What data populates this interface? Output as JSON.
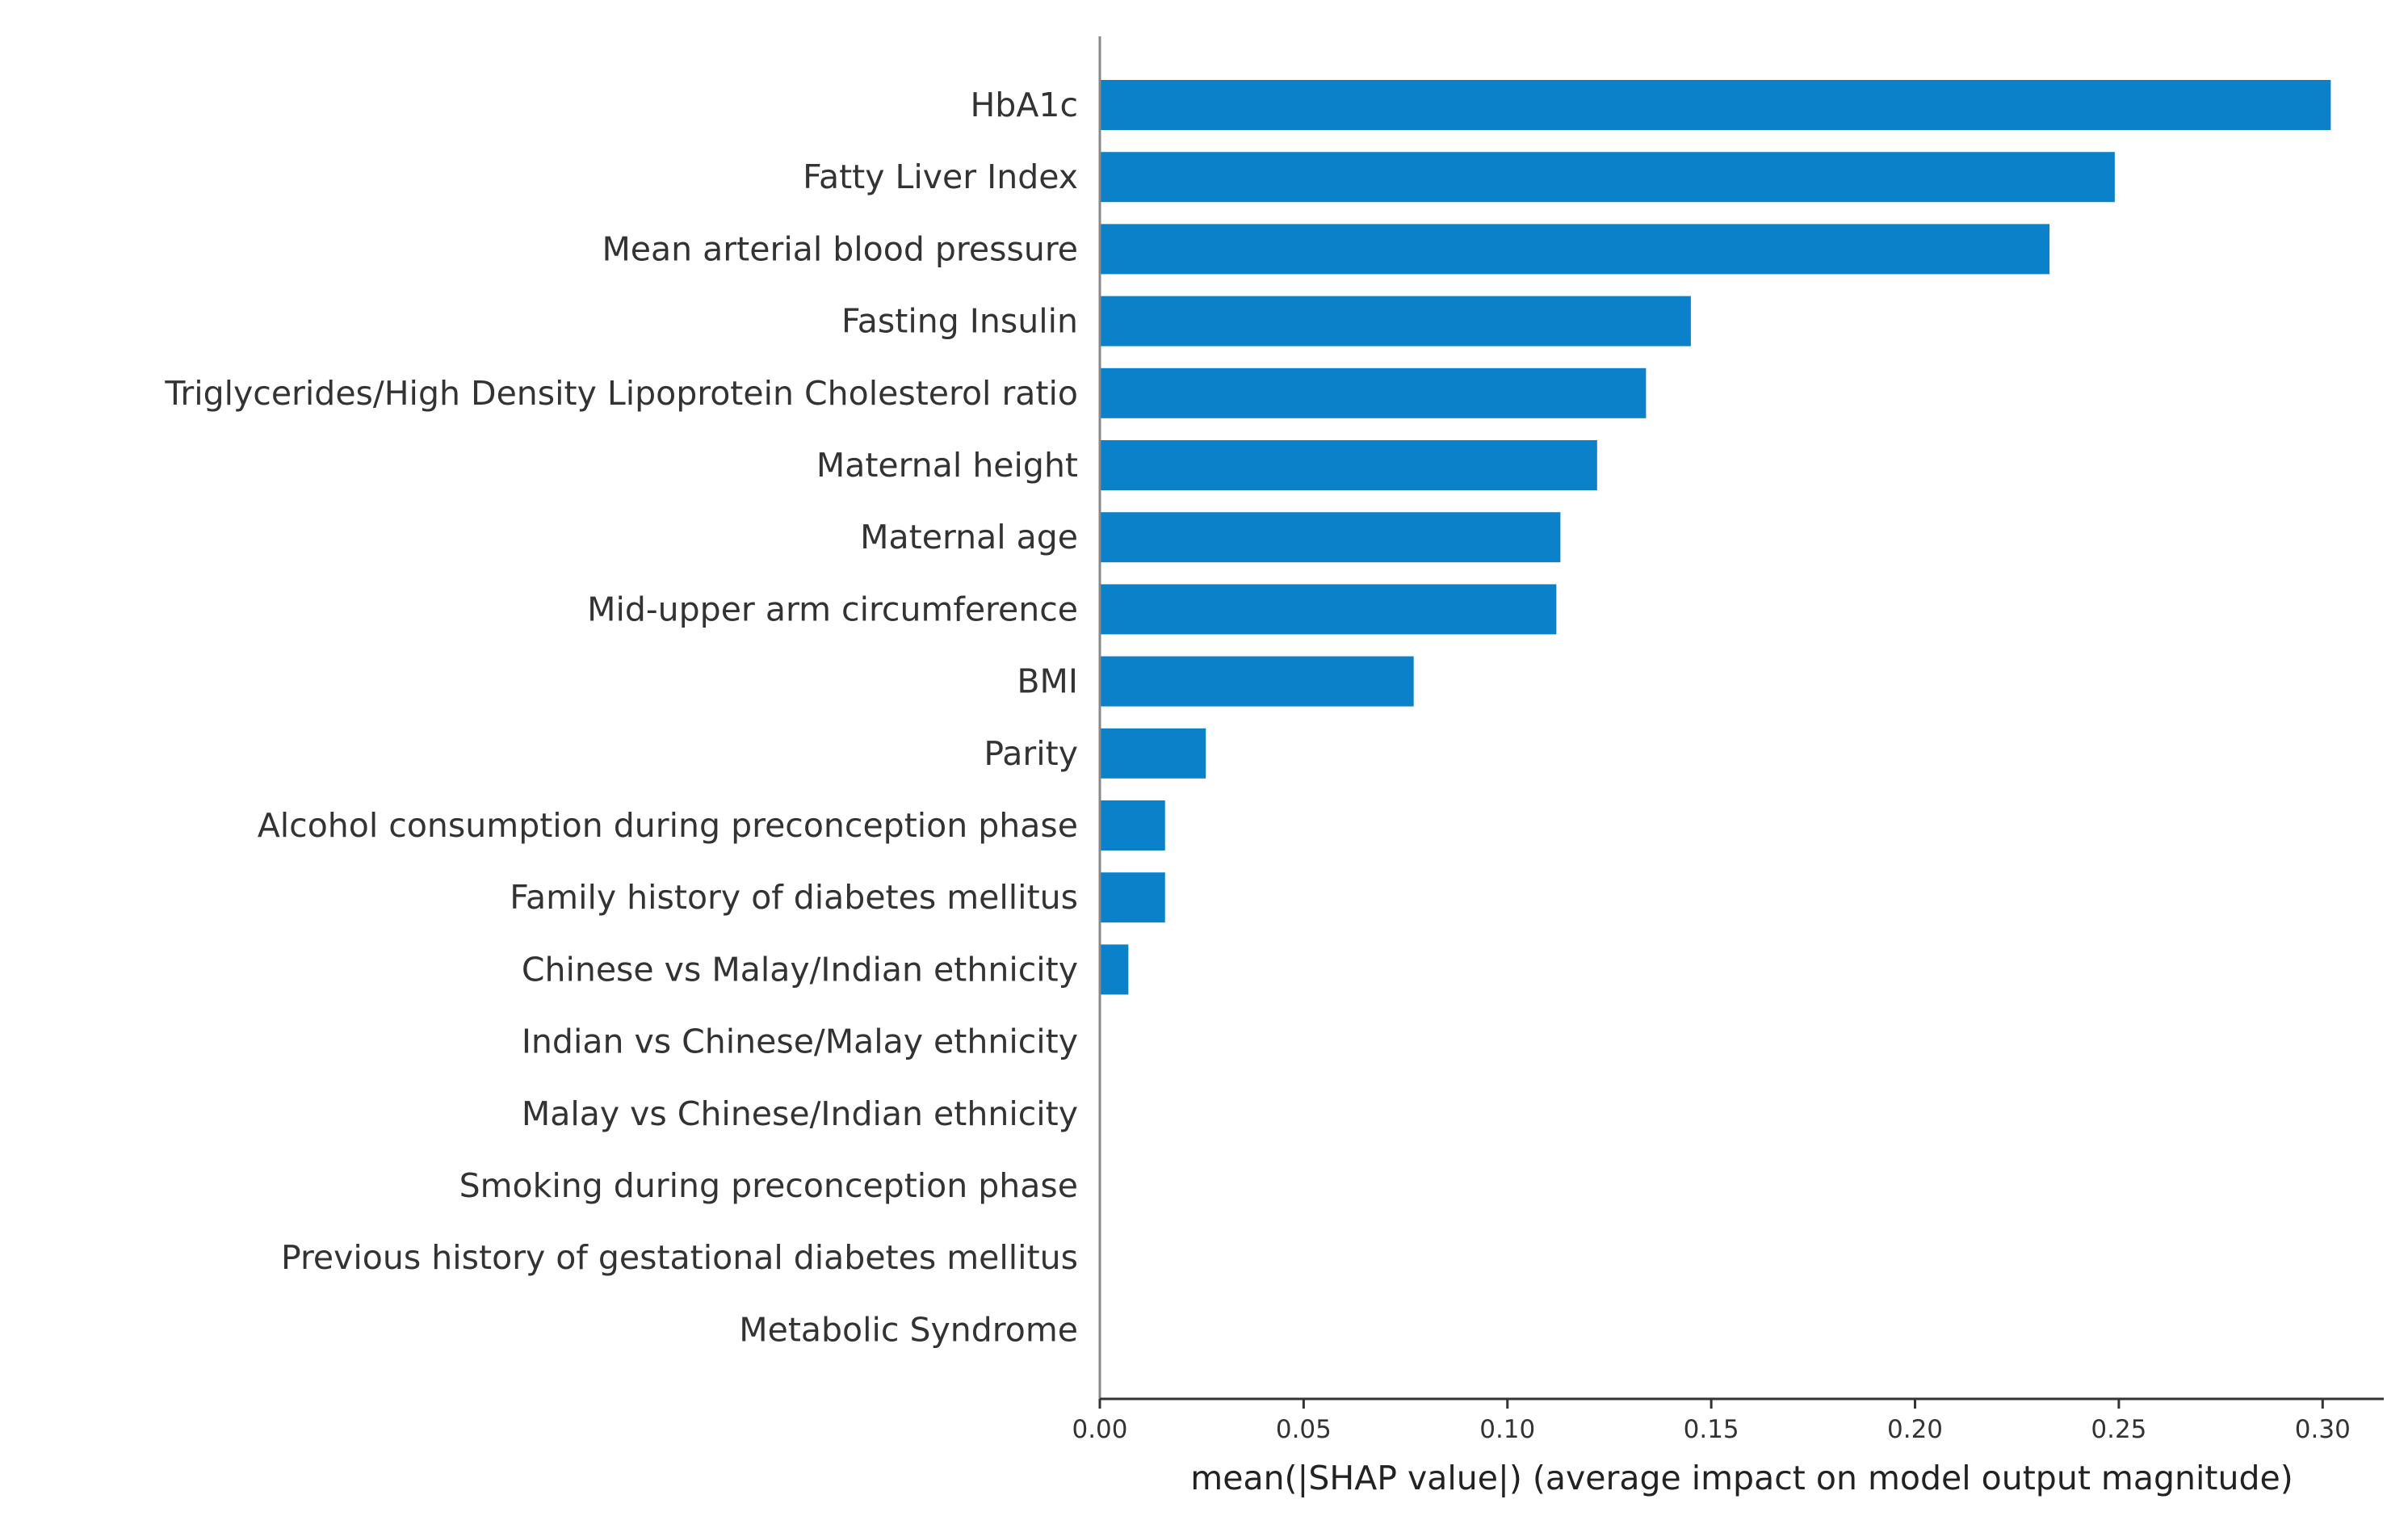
{
  "chart_data": {
    "type": "bar",
    "orientation": "horizontal",
    "categories": [
      "HbA1c",
      "Fatty Liver Index",
      "Mean arterial blood pressure",
      "Fasting Insulin",
      "Triglycerides/High Density Lipoprotein Cholesterol ratio",
      "Maternal height",
      "Maternal age",
      "Mid-upper arm circumference",
      "BMI",
      "Parity",
      "Alcohol consumption during preconception phase",
      "Family history of diabetes mellitus",
      "Chinese vs Malay/Indian ethnicity",
      "Indian vs Chinese/Malay ethnicity",
      "Malay vs Chinese/Indian ethnicity",
      "Smoking during preconception phase",
      "Previous history of gestational diabetes mellitus",
      "Metabolic Syndrome"
    ],
    "values": [
      0.302,
      0.249,
      0.233,
      0.145,
      0.134,
      0.122,
      0.113,
      0.112,
      0.077,
      0.026,
      0.016,
      0.016,
      0.007,
      0.0,
      0.0,
      0.0,
      0.0,
      0.0
    ],
    "xlabel": "mean(|SHAP value|) (average impact on model output magnitude)",
    "ylabel": "",
    "title": "",
    "xlim": [
      0.0,
      0.315
    ],
    "xticks": [
      "0.00",
      "0.05",
      "0.10",
      "0.15",
      "0.20",
      "0.25",
      "0.30"
    ],
    "grid": false,
    "bar_color": "#0b81c9"
  }
}
